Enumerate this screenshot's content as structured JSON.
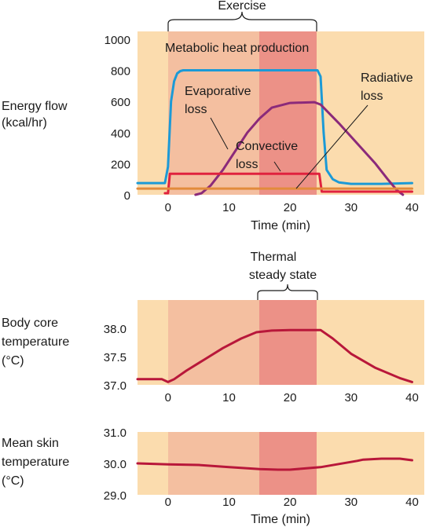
{
  "chart_data": [
    {
      "type": "line",
      "ylabel_lines": [
        "Energy flow",
        "(kcal/hr)"
      ],
      "xlabel": "Time (min)",
      "xlim": [
        -5,
        42
      ],
      "ylim": [
        0,
        1050
      ],
      "xticks": [
        0,
        10,
        20,
        30,
        40
      ],
      "yticks": [
        0,
        200,
        400,
        600,
        800,
        1000
      ],
      "bracket_label": "Exercise",
      "bracket_range": [
        0,
        25
      ],
      "series": [
        {
          "name": "Metabolic heat production",
          "color": "#1c9ad6",
          "x": [
            -5,
            -0.5,
            0,
            0.5,
            1,
            1.5,
            2,
            2.5,
            3,
            24.5,
            25,
            25.5,
            26,
            27,
            28,
            30,
            35,
            40
          ],
          "y": [
            75,
            75,
            180,
            600,
            730,
            780,
            795,
            800,
            800,
            800,
            760,
            400,
            160,
            100,
            80,
            70,
            70,
            75
          ]
        },
        {
          "name": "Evaporative loss",
          "color": "#8b2a7a",
          "x": [
            4.5,
            5.5,
            7,
            9,
            11,
            13,
            15,
            17,
            20,
            24,
            25,
            28,
            31,
            34,
            36,
            37.5,
            38.5
          ],
          "y": [
            0,
            10,
            60,
            160,
            280,
            400,
            490,
            560,
            590,
            595,
            580,
            460,
            330,
            200,
            100,
            30,
            0
          ]
        },
        {
          "name": "Convective loss",
          "color": "#e0223e",
          "x": [
            -0.5,
            0,
            0.3,
            24.5,
            24.8,
            25.2,
            38.5,
            40
          ],
          "y": [
            10,
            10,
            135,
            135,
            135,
            20,
            20,
            20
          ]
        },
        {
          "name": "Radiative loss",
          "color": "#e28b3c",
          "x": [
            -5,
            40
          ],
          "y": [
            40,
            40
          ]
        }
      ],
      "annotations": [
        {
          "text_lines": [
            "Metabolic heat production"
          ]
        },
        {
          "text_lines": [
            "Evaporative",
            "loss"
          ]
        },
        {
          "text_lines": [
            "Radiative",
            "loss"
          ]
        },
        {
          "text_lines": [
            "Convective",
            "loss"
          ]
        }
      ]
    },
    {
      "type": "line",
      "ylabel_lines": [
        "Body core",
        "temperature",
        "(°C)"
      ],
      "xlabel": "",
      "xlim": [
        -5,
        42
      ],
      "ylim": [
        37.0,
        38.5
      ],
      "xticks": [
        0,
        10,
        20,
        30,
        40
      ],
      "xtick_labels": [
        "0",
        "10",
        "20",
        "30",
        "40"
      ],
      "ytick_labels": [
        "37.0",
        "37.5",
        "38.0"
      ],
      "yticks": [
        37.0,
        37.5,
        38.0
      ],
      "bracket_label_lines": [
        "Thermal",
        "steady state"
      ],
      "bracket_range": [
        15,
        25
      ],
      "series": [
        {
          "name": "Body core temperature",
          "color": "#b8173a",
          "x": [
            -5,
            -1,
            0,
            1,
            3,
            6,
            9,
            12,
            14.5,
            17,
            20,
            25,
            27,
            30,
            34,
            38,
            40
          ],
          "y": [
            37.1,
            37.1,
            37.05,
            37.1,
            37.25,
            37.45,
            37.65,
            37.82,
            37.93,
            37.96,
            37.97,
            37.97,
            37.82,
            37.55,
            37.3,
            37.12,
            37.05
          ]
        }
      ]
    },
    {
      "type": "line",
      "ylabel_lines": [
        "Mean skin",
        "temperature",
        "(°C)"
      ],
      "xlabel": "Time (min)",
      "xlim": [
        -5,
        42
      ],
      "ylim": [
        29.0,
        31.0
      ],
      "xticks": [
        0,
        10,
        20,
        30,
        40
      ],
      "yticks": [
        29.0,
        30.0,
        31.0
      ],
      "ytick_labels": [
        "29.0",
        "30.0",
        "31.0"
      ],
      "series": [
        {
          "name": "Mean skin temperature",
          "color": "#b8173a",
          "x": [
            -5,
            0,
            5,
            10,
            15,
            18,
            20,
            25,
            28,
            31,
            32,
            35,
            38,
            40
          ],
          "y": [
            30.0,
            29.97,
            29.95,
            29.88,
            29.82,
            29.8,
            29.8,
            29.88,
            29.98,
            30.08,
            30.12,
            30.15,
            30.15,
            30.1
          ]
        }
      ]
    }
  ],
  "colors": {
    "rest_bg": "#fbdcae",
    "exercise_bg": "#f4bfa0",
    "steady_bg": "#ec9187"
  }
}
